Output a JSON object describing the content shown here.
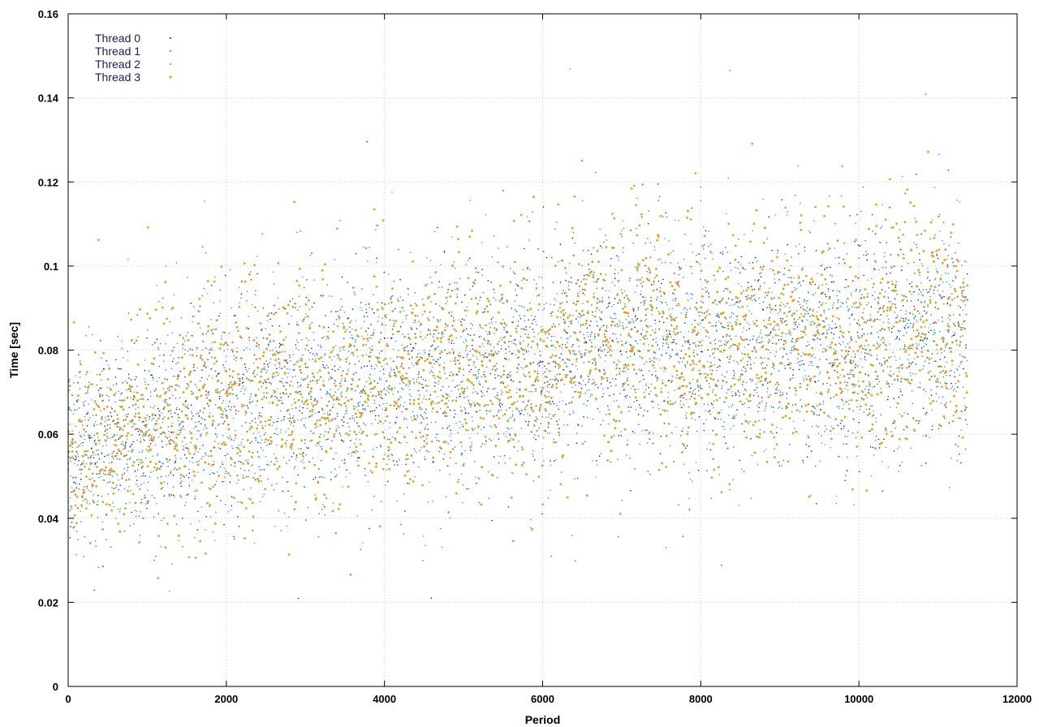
{
  "chart_data": {
    "type": "scatter",
    "title": "",
    "xlabel": "Period",
    "ylabel": "Time [sec]",
    "xlim": [
      0,
      12000
    ],
    "ylim": [
      0,
      0.16
    ],
    "x_ticks": [
      "0",
      "2000",
      "4000",
      "6000",
      "8000",
      "10000",
      "12000"
    ],
    "y_ticks": [
      "0",
      "0.02",
      "0.04",
      "0.06",
      "0.08",
      "0.1",
      "0.12",
      "0.14",
      "0.16"
    ],
    "grid": true,
    "legend_position": "top-left",
    "x_data_range": [
      0,
      11370
    ],
    "series": [
      {
        "name": "Thread 0",
        "color": "#2a1870",
        "trend": [
          [
            0,
            0.055
          ],
          [
            500,
            0.058
          ],
          [
            1000,
            0.062
          ],
          [
            2000,
            0.066
          ],
          [
            3000,
            0.07
          ],
          [
            4000,
            0.072
          ],
          [
            5000,
            0.075
          ],
          [
            6000,
            0.076
          ],
          [
            7000,
            0.083
          ],
          [
            8000,
            0.08
          ],
          [
            9000,
            0.08
          ],
          [
            10000,
            0.08
          ],
          [
            11000,
            0.086
          ],
          [
            11370,
            0.083
          ]
        ],
        "spread": 0.013
      },
      {
        "name": "Thread 1",
        "color": "#1a8f7a",
        "trend": [
          [
            0,
            0.055
          ],
          [
            500,
            0.058
          ],
          [
            1000,
            0.062
          ],
          [
            2000,
            0.066
          ],
          [
            3000,
            0.07
          ],
          [
            4000,
            0.072
          ],
          [
            5000,
            0.075
          ],
          [
            6000,
            0.077
          ],
          [
            7000,
            0.084
          ],
          [
            8000,
            0.081
          ],
          [
            9000,
            0.081
          ],
          [
            10000,
            0.081
          ],
          [
            11000,
            0.087
          ],
          [
            11370,
            0.084
          ]
        ],
        "spread": 0.014
      },
      {
        "name": "Thread 2",
        "color": "#2ba6cf",
        "trend": [
          [
            0,
            0.055
          ],
          [
            500,
            0.058
          ],
          [
            1000,
            0.062
          ],
          [
            2000,
            0.066
          ],
          [
            3000,
            0.07
          ],
          [
            4000,
            0.072
          ],
          [
            5000,
            0.075
          ],
          [
            6000,
            0.076
          ],
          [
            7000,
            0.083
          ],
          [
            8000,
            0.08
          ],
          [
            9000,
            0.08
          ],
          [
            10000,
            0.08
          ],
          [
            11000,
            0.086
          ],
          [
            11370,
            0.083
          ]
        ],
        "spread": 0.014
      },
      {
        "name": "Thread 3",
        "color": "#e5a01e",
        "trend": [
          [
            0,
            0.054
          ],
          [
            500,
            0.058
          ],
          [
            1000,
            0.062
          ],
          [
            2000,
            0.067
          ],
          [
            3000,
            0.071
          ],
          [
            4000,
            0.073
          ],
          [
            5000,
            0.075
          ],
          [
            6000,
            0.076
          ],
          [
            7000,
            0.085
          ],
          [
            8000,
            0.081
          ],
          [
            9000,
            0.081
          ],
          [
            10000,
            0.081
          ],
          [
            11000,
            0.088
          ],
          [
            11370,
            0.084
          ]
        ],
        "spread": 0.014
      }
    ]
  }
}
